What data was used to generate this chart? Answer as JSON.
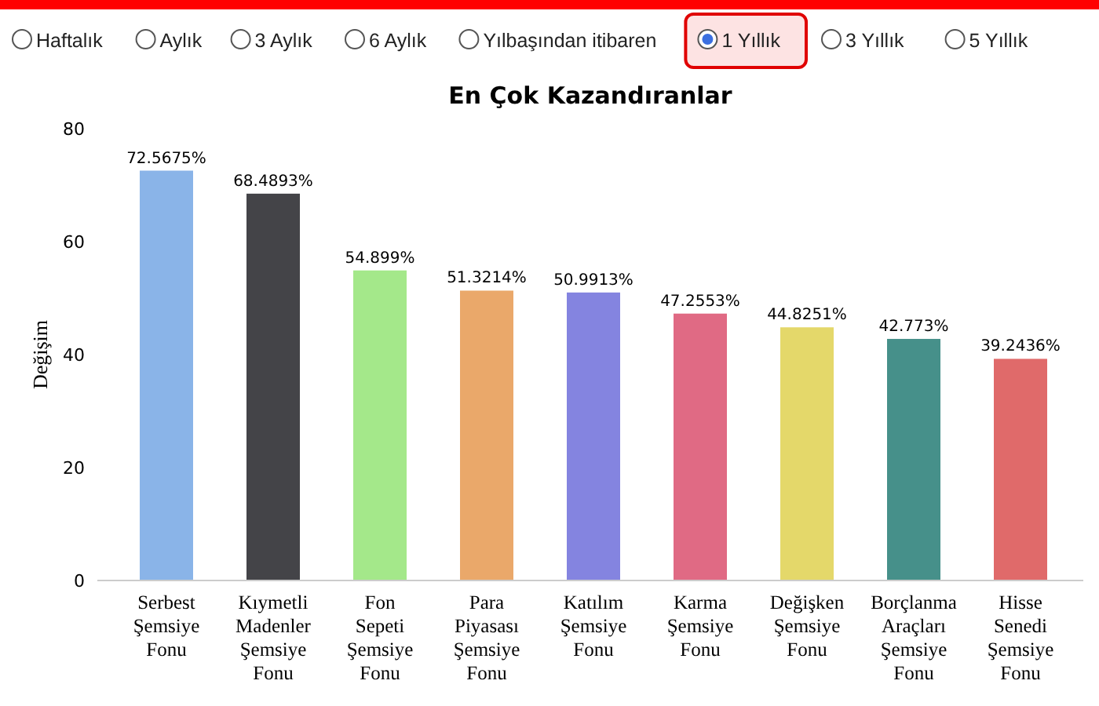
{
  "chart_data": {
    "type": "bar",
    "title": "En Çok Kazandıranlar",
    "ylabel": "Değişim",
    "annotations": [
      "Haftalık",
      "Aylık",
      "3 Aylık",
      "6 Aylık",
      "Yılbaşından itibaren",
      "1 Yıllık",
      "3 Yıllık",
      "5 Yıllık"
    ],
    "categories": [
      "Serbest Şemsiye Fonu",
      "Kıymetli Madenler Şemsiye Fonu",
      "Fon Sepeti Şemsiye Fonu",
      "Para Piyasası Şemsiye Fonu",
      "Katılım Şemsiye Fonu",
      "Karma Şemsiye Fonu",
      "Değişken Şemsiye Fonu",
      "Borçlanma Araçları Şemsiye Fonu",
      "Hisse Senedi Şemsiye Fonu"
    ],
    "values": [
      72.5675,
      68.4893,
      54.899,
      51.3214,
      50.9913,
      47.2553,
      44.8251,
      42.773,
      39.2436
    ],
    "value_labels": [
      "72.5675%",
      "68.4893%",
      "54.899%",
      "51.3214%",
      "50.9913%",
      "47.2553%",
      "44.8251%",
      "42.773%",
      "39.2436%"
    ],
    "colors": [
      "#8ab4e8",
      "#444448",
      "#a4e88a",
      "#eaa86a",
      "#8484e0",
      "#e06a84",
      "#e4d86a",
      "#46908a",
      "#e06a6a"
    ],
    "ylim": [
      0,
      80
    ],
    "yticks": [
      0,
      20,
      40,
      60,
      80
    ],
    "grid": false
  }
}
